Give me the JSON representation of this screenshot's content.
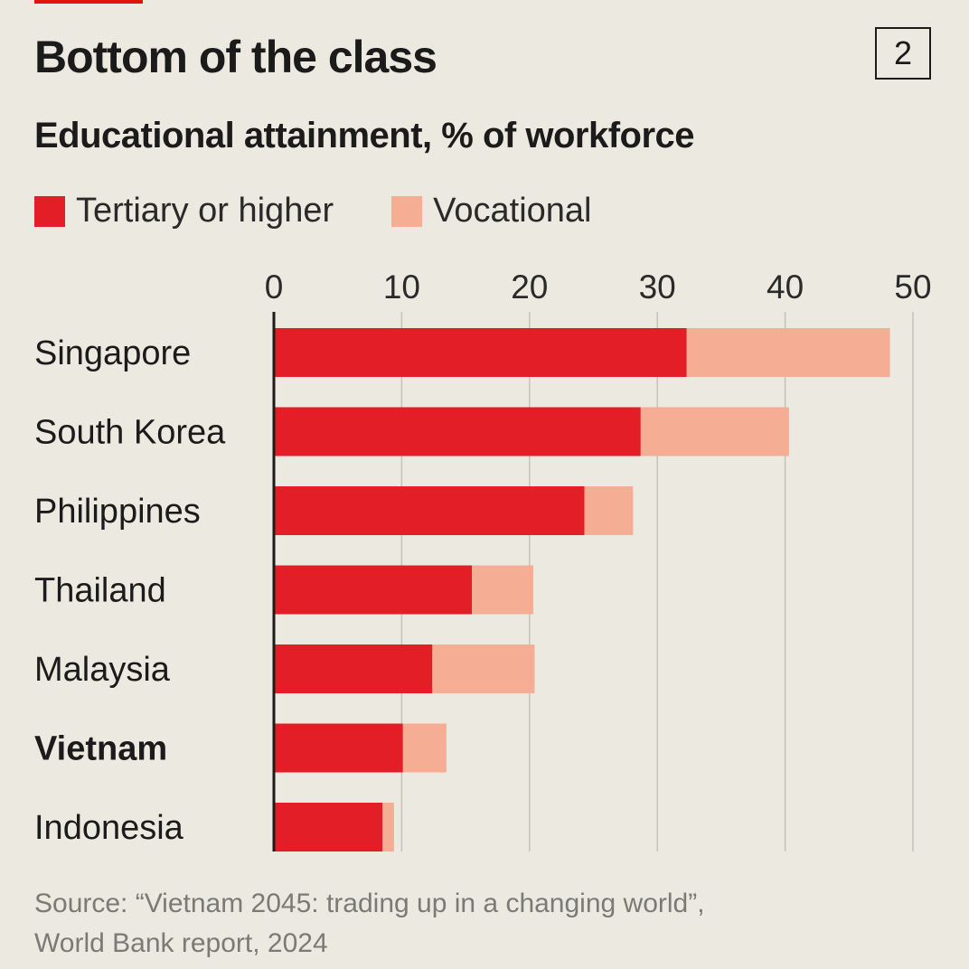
{
  "header": {
    "title": "Bottom of the class",
    "chart_number": "2",
    "subtitle": "Educational attainment, % of workforce"
  },
  "colors": {
    "tertiary": "#e41e26",
    "vocational": "#f5ad93",
    "background": "#ebe9e0",
    "gridline": "#c4c2ba",
    "axis": "#1b1b1b",
    "accent_tag": "#e3120b"
  },
  "chart_data": {
    "type": "bar",
    "orientation": "horizontal",
    "stacked": true,
    "title": "Bottom of the class",
    "subtitle": "Educational attainment, % of workforce",
    "categories": [
      "Singapore",
      "South Korea",
      "Philippines",
      "Thailand",
      "Malaysia",
      "Vietnam",
      "Indonesia"
    ],
    "highlight_category": "Vietnam",
    "series": [
      {
        "name": "Tertiary or higher",
        "values": [
          32.3,
          28.7,
          24.3,
          15.5,
          12.4,
          10.1,
          8.5
        ]
      },
      {
        "name": "Vocational",
        "values": [
          15.9,
          11.6,
          3.8,
          4.8,
          8.0,
          3.4,
          0.9
        ]
      }
    ],
    "xlim": [
      0,
      50
    ],
    "xticks": [
      "0",
      "10",
      "20",
      "30",
      "40",
      "50"
    ],
    "xaxis_position": "top",
    "grid": true,
    "legend_position": "top-left"
  },
  "source": {
    "line1": "Source: “Vietnam 2045: trading up in a changing world”,",
    "line2": "World Bank report, 2024"
  }
}
